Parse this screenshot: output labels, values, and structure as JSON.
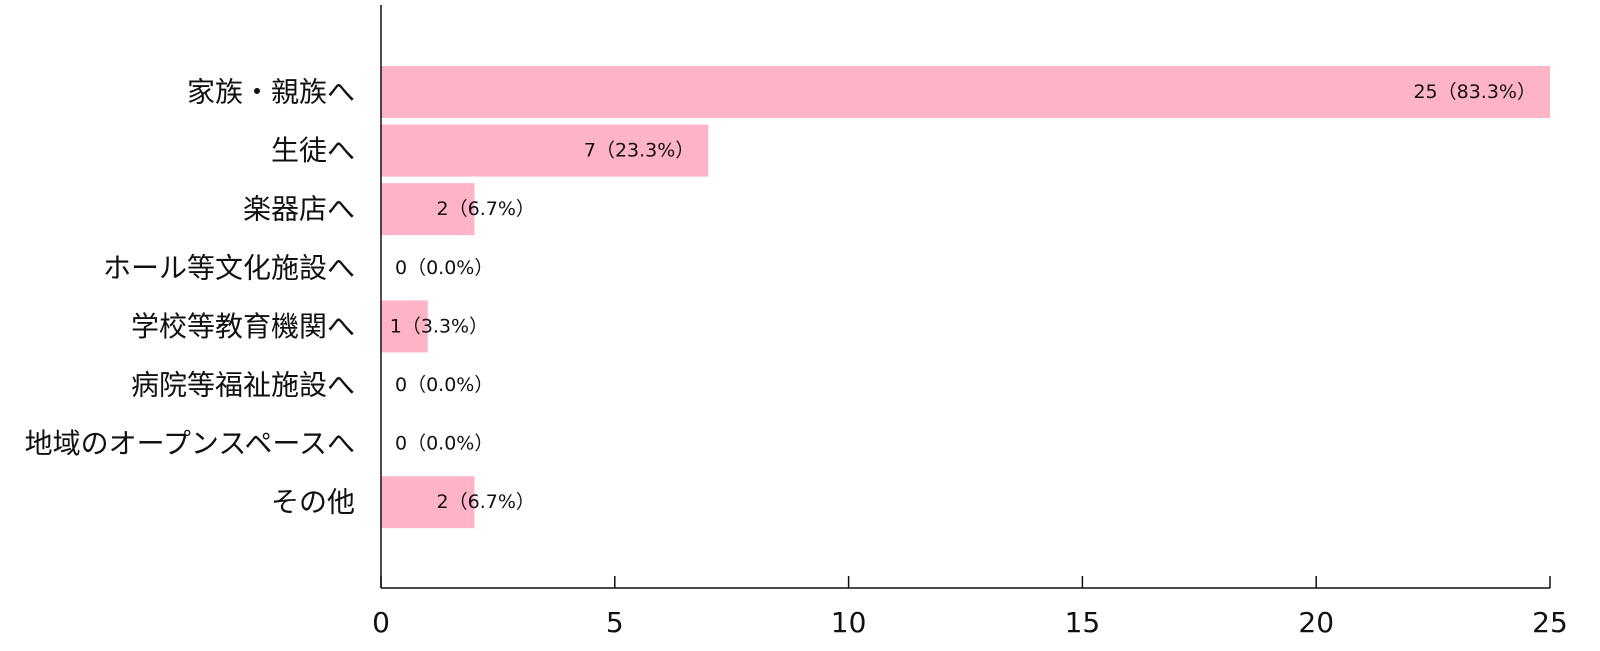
{
  "chart_data": {
    "type": "bar",
    "orientation": "horizontal",
    "categories": [
      "家族・親族へ",
      "生徒へ",
      "楽器店へ",
      "ホール等文化施設へ",
      "学校等教育機関へ",
      "病院等福祉施設へ",
      "地域のオープンスペースへ",
      "その他"
    ],
    "values": [
      25,
      7,
      2,
      0,
      1,
      0,
      0,
      2
    ],
    "data_labels": [
      "25（83.3%）",
      "7（23.3%）",
      "2（6.7%）",
      "0（0.0%）",
      "1（3.3%）",
      "0（0.0%）",
      "0（0.0%）",
      "2（6.7%）"
    ],
    "xlim": [
      0,
      25
    ],
    "xticks": [
      0,
      5,
      10,
      15,
      20,
      25
    ],
    "xtick_labels": [
      "0",
      "5",
      "10",
      "15",
      "20",
      "25"
    ],
    "bar_color": "#ffb3c6",
    "grid": false,
    "legend": "none"
  }
}
